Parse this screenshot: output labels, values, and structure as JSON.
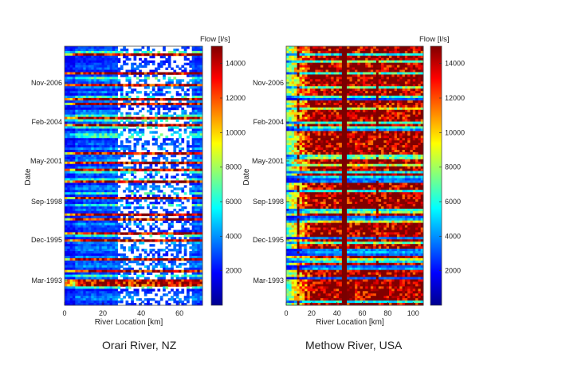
{
  "colorbar_palette": [
    "#00008f",
    "#0000ff",
    "#0080ff",
    "#00ffff",
    "#80ff80",
    "#ffff00",
    "#ff8000",
    "#ff0000",
    "#800000"
  ],
  "chart_data": [
    {
      "type": "heatmap",
      "title": "Orari River, NZ",
      "xlabel": "River Location [km]",
      "ylabel": "Date",
      "xlim": [
        0,
        72
      ],
      "xticks": [
        0,
        20,
        40,
        60
      ],
      "yticks": [
        "Nov-2006",
        "Feb-2004",
        "May-2001",
        "Sep-1998",
        "Dec-1995",
        "Mar-1993"
      ],
      "colorbar": {
        "label": "Flow [l/s]",
        "range": [
          0,
          15000
        ],
        "ticks": [
          2000,
          4000,
          6000,
          8000,
          10000,
          12000,
          14000
        ]
      },
      "description_values": {
        "typical_flow_l_s": 3500,
        "peak_flow_l_s": 15000,
        "dry_reach_km": [
          28,
          66
        ]
      }
    },
    {
      "type": "heatmap",
      "title": "Methow River, USA",
      "xlabel": "River Location [km]",
      "ylabel": "Date",
      "xlim": [
        0,
        108
      ],
      "xticks": [
        0,
        20,
        40,
        60,
        80,
        100
      ],
      "yticks": [
        "Nov-2006",
        "Feb-2004",
        "May-2001",
        "Sep-1998",
        "Dec-1995",
        "Mar-1993"
      ],
      "colorbar": {
        "label": "Flow [l/s]",
        "range": [
          0,
          15000
        ],
        "ticks": [
          2000,
          4000,
          6000,
          8000,
          10000,
          12000,
          14000
        ]
      },
      "description_values": {
        "typical_flow_l_s": 9000,
        "peak_flow_l_s": 15000,
        "gap_locations_km": [
          10,
          45,
          72
        ]
      }
    }
  ]
}
